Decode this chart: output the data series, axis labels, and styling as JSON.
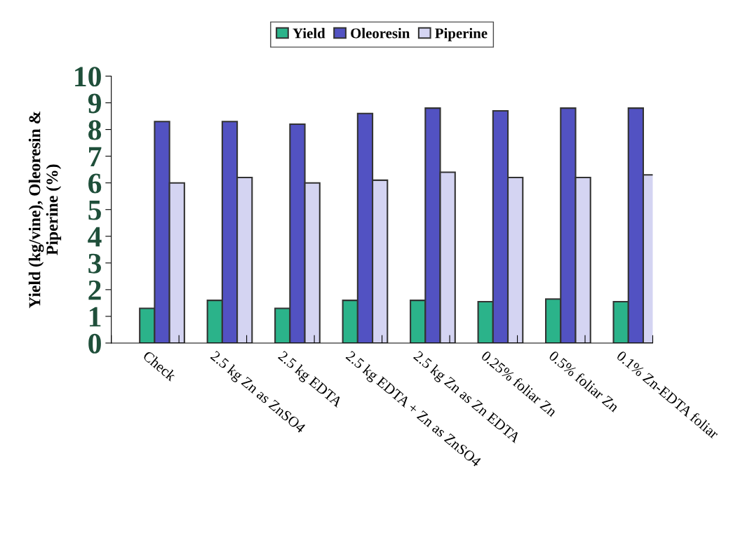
{
  "chart_data": {
    "type": "bar",
    "ylabel": "Yield (kg/vine), Oleoresin &\nPiperine (%)",
    "categories": [
      "Check",
      "2.5 kg Zn as ZnSO4",
      "2.5 kg EDTA",
      "2.5 kg EDTA + Zn as ZnSO4",
      "2.5 kg Zn as Zn EDTA",
      "0.25% foliar Zn",
      "0.5% foliar Zn",
      "0.1% Zn-EDTA foliar"
    ],
    "series": [
      {
        "name": "Yield",
        "color": "#2bb38a",
        "values": [
          1.3,
          1.6,
          1.3,
          1.6,
          1.6,
          1.55,
          1.65,
          1.55
        ]
      },
      {
        "name": "Oleoresin",
        "color": "#5252c2",
        "values": [
          8.3,
          8.3,
          8.2,
          8.6,
          8.8,
          8.7,
          8.8,
          8.8
        ]
      },
      {
        "name": "Piperine",
        "color": "#d4d4f2",
        "values": [
          6.0,
          6.2,
          6.0,
          6.1,
          6.4,
          6.2,
          6.2,
          6.3
        ]
      }
    ],
    "ylim": [
      0,
      10
    ],
    "yticks": [
      0,
      1,
      2,
      3,
      4,
      5,
      6,
      7,
      8,
      9,
      10
    ],
    "grid": false,
    "legend": "top"
  }
}
